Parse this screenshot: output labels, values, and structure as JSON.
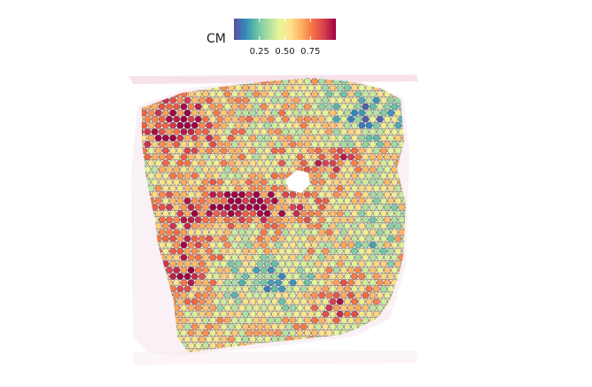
{
  "chart_data": {
    "type": "heatmap",
    "description_kind": "spatial spot plot over tissue section",
    "legend": {
      "title": "CM",
      "ticks": [
        0.25,
        0.5,
        0.75
      ],
      "tick_labels": [
        "0.25",
        "0.50",
        "0.75"
      ],
      "range": [
        0.0,
        1.0
      ],
      "colormap": [
        "#5e4fa2",
        "#3288bd",
        "#66c2a5",
        "#abdda4",
        "#e6f598",
        "#fee08b",
        "#fdae61",
        "#f46d43",
        "#d53e4f",
        "#9e0142"
      ]
    },
    "spot_outline_color": "#3a3a3a",
    "high_regions": [
      {
        "name": "upper-left band",
        "level": 0.85
      },
      {
        "name": "middle horizontal band",
        "level": 0.9
      },
      {
        "name": "lower-left region",
        "level": 0.75
      },
      {
        "name": "right-center strip",
        "level": 0.7
      }
    ],
    "low_regions": [
      {
        "name": "upper-right",
        "level": 0.25
      },
      {
        "name": "lower-center",
        "level": 0.3
      }
    ]
  }
}
